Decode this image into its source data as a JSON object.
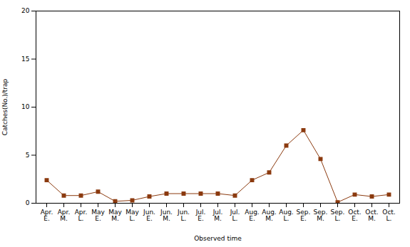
{
  "chart_data": {
    "type": "line",
    "categories": [
      "Apr.\nE.",
      "Apr.\nM.",
      "Apr.\nL.",
      "May\nE.",
      "May\nM.",
      "May\nL.",
      "Jun.\nE.",
      "Jun.\nM.",
      "Jun.\nL.",
      "Jul.\nE.",
      "Jul.\nM.",
      "Jul.\nL.",
      "Aug.\nE.",
      "Aug.\nM.",
      "Aug.\nL.",
      "Sep.\nE.",
      "Sep.\nM.",
      "Sep.\nL.",
      "Oct.\nE.",
      "Oct.\nM.",
      "Oct.\nL."
    ],
    "values": [
      2.4,
      0.8,
      0.8,
      1.2,
      0.2,
      0.3,
      0.7,
      1.0,
      1.0,
      1.0,
      1.0,
      0.8,
      2.4,
      3.2,
      6.0,
      7.6,
      4.6,
      0.1,
      0.9,
      0.7,
      0.9
    ],
    "color": "#8B3A0F",
    "marker": "square",
    "xlabel": "Observed time",
    "ylabel": "Catches(No.)/trap",
    "ylim": [
      0,
      20
    ],
    "yticks": [
      0,
      5,
      10,
      15,
      20
    ],
    "grid": false
  }
}
